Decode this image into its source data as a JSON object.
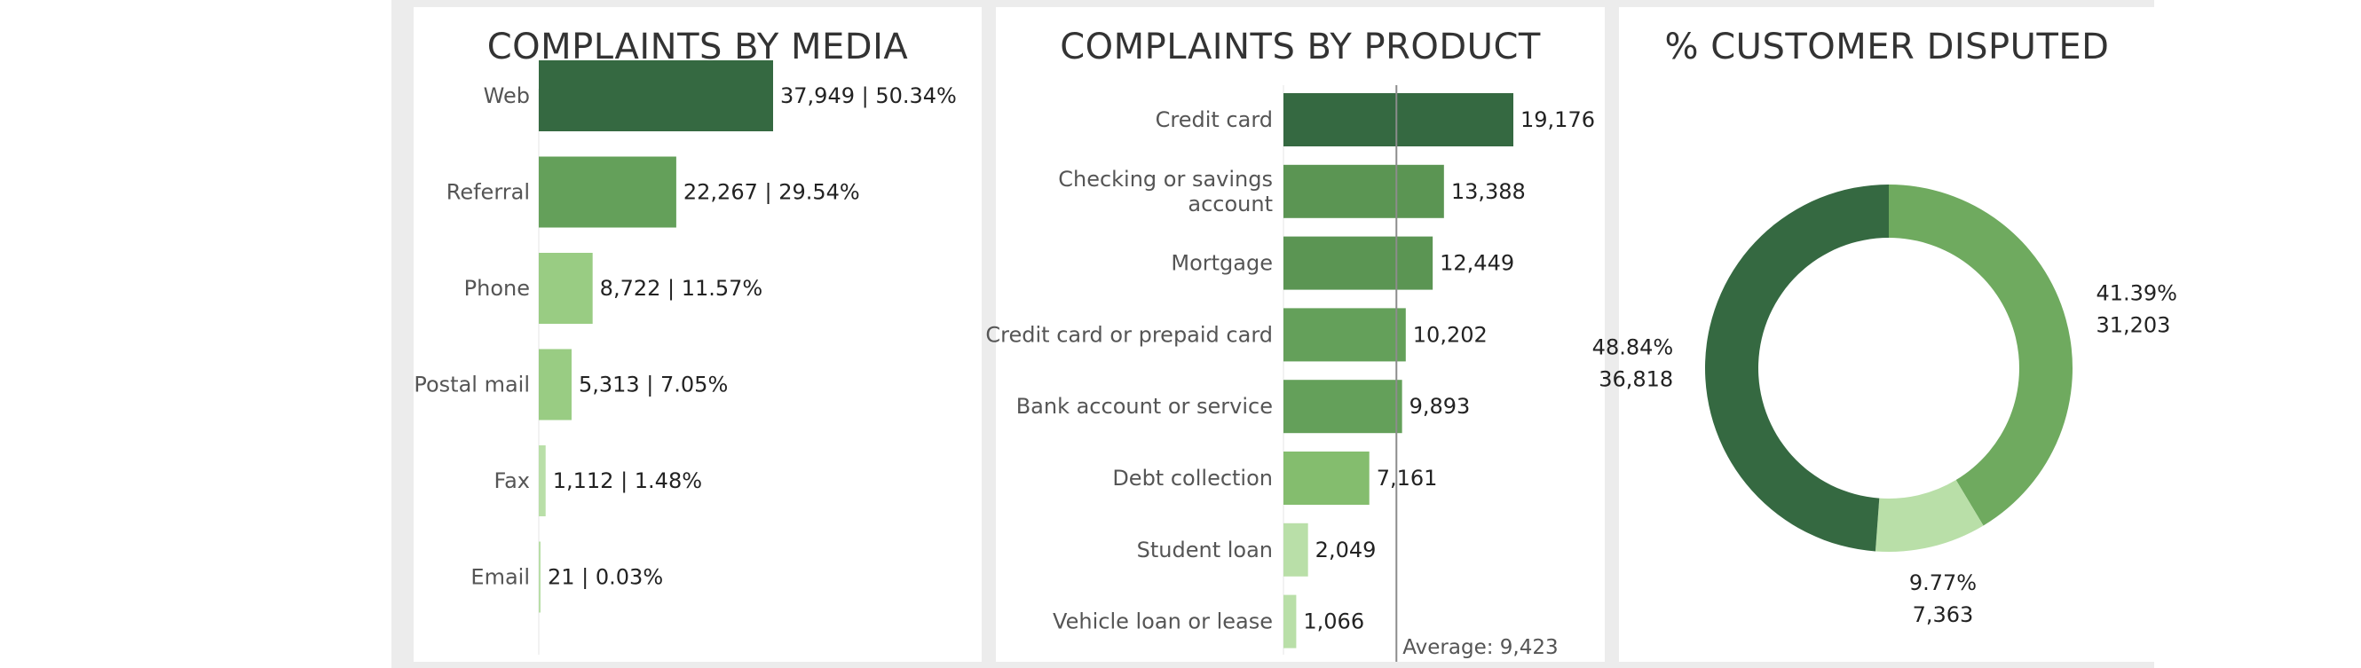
{
  "colors": {
    "dark": "#356941",
    "mid": "#5b9553",
    "mid2": "#64a05a",
    "mid3": "#6faa5f",
    "light": "#84bd6e",
    "lighter": "#99cc83",
    "pale": "#b9dfa8",
    "avg_line": "#8c8c8c",
    "label": "#555555",
    "value": "#222222"
  },
  "chart_data": [
    {
      "type": "bar",
      "orientation": "horizontal",
      "title": "COMPLAINTS BY MEDIA",
      "categories": [
        "Web",
        "Referral",
        "Phone",
        "Postal mail",
        "Fax",
        "Email"
      ],
      "values": [
        37949,
        22267,
        8722,
        5313,
        1112,
        21
      ],
      "percents": [
        "50.34%",
        "29.54%",
        "11.57%",
        "7.05%",
        "1.48%",
        "0.03%"
      ],
      "labels": [
        "37,949 | 50.34%",
        "22,267 | 29.54%",
        "8,722 | 11.57%",
        "5,313 | 7.05%",
        "1,112 | 1.48%",
        "21 | 0.03%"
      ],
      "colors": [
        "#356941",
        "#64a05a",
        "#99cc83",
        "#99cc83",
        "#b9dfa8",
        "#b9dfa8"
      ]
    },
    {
      "type": "bar",
      "orientation": "horizontal",
      "title": "COMPLAINTS BY PRODUCT",
      "categories": [
        [
          "Credit card"
        ],
        [
          "Checking or savings",
          "account"
        ],
        [
          "Mortgage"
        ],
        [
          "Credit card or prepaid card"
        ],
        [
          "Bank account or service"
        ],
        [
          "Debt collection"
        ],
        [
          "Student loan"
        ],
        [
          "Vehicle loan or lease"
        ]
      ],
      "values": [
        19176,
        13388,
        12449,
        10202,
        9893,
        7161,
        2049,
        1066
      ],
      "labels": [
        "19,176",
        "13,388",
        "12,449",
        "10,202",
        "9,893",
        "7,161",
        "2,049",
        "1,066"
      ],
      "colors": [
        "#356941",
        "#5b9553",
        "#5b9553",
        "#64a05a",
        "#64a05a",
        "#84bd6e",
        "#b9dfa8",
        "#b9dfa8"
      ],
      "reference_line": {
        "value": 9423,
        "label": "Average: 9,423"
      }
    },
    {
      "type": "pie",
      "donut": true,
      "title": "% CUSTOMER DISPUTED",
      "slices": [
        {
          "value": 31203,
          "percent": "41.39%",
          "label": "31,203",
          "color": "#6faa5f"
        },
        {
          "value": 7363,
          "percent": "9.77%",
          "label": "7,363",
          "color": "#b9dfa8"
        },
        {
          "value": 36818,
          "percent": "48.84%",
          "label": "36,818",
          "color": "#356941"
        }
      ]
    }
  ]
}
